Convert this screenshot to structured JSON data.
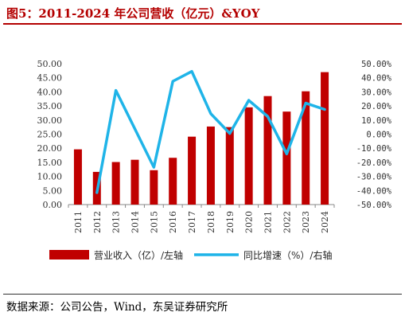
{
  "page": {
    "title": "图5：2011-2024 年公司营收（亿元）&YOY",
    "source": "数据来源：公司公告，Wind，东吴证券研究所"
  },
  "chart_data": {
    "type": "bar",
    "categories": [
      "2011",
      "2012",
      "2013",
      "2014",
      "2015",
      "2016",
      "2017",
      "2018",
      "2019",
      "2020",
      "2021",
      "2022",
      "2023",
      "2024"
    ],
    "series": [
      {
        "name": "营业收入（亿）/左轴",
        "type": "bar",
        "axis": "left",
        "color": "#c00000",
        "values": [
          19.6,
          11.6,
          15.1,
          15.9,
          12.2,
          16.6,
          24.1,
          27.7,
          27.5,
          34.5,
          38.5,
          33.0,
          40.2,
          47.0
        ]
      },
      {
        "name": "同比增速（%）/右轴",
        "type": "line",
        "axis": "right",
        "color": "#1fb4e8",
        "values": [
          null,
          -41.5,
          31.0,
          null,
          -23.5,
          37.5,
          44.5,
          14.5,
          0.5,
          24.0,
          12.5,
          -14.0,
          22.0,
          17.5
        ]
      }
    ],
    "y_left": {
      "min": 0,
      "max": 50,
      "step": 5,
      "tick_labels": [
        "0.00",
        "5.00",
        "10.00",
        "15.00",
        "20.00",
        "25.00",
        "30.00",
        "35.00",
        "40.00",
        "45.00",
        "50.00"
      ]
    },
    "y_right": {
      "min": -50,
      "max": 50,
      "step": 10,
      "tick_labels": [
        "-50.00%",
        "-40.00%",
        "-30.00%",
        "-20.00%",
        "-10.00%",
        "0.00%",
        "10.00%",
        "20.00%",
        "30.00%",
        "40.00%",
        "50.00%"
      ]
    },
    "grid": false,
    "legend": "bottom"
  }
}
